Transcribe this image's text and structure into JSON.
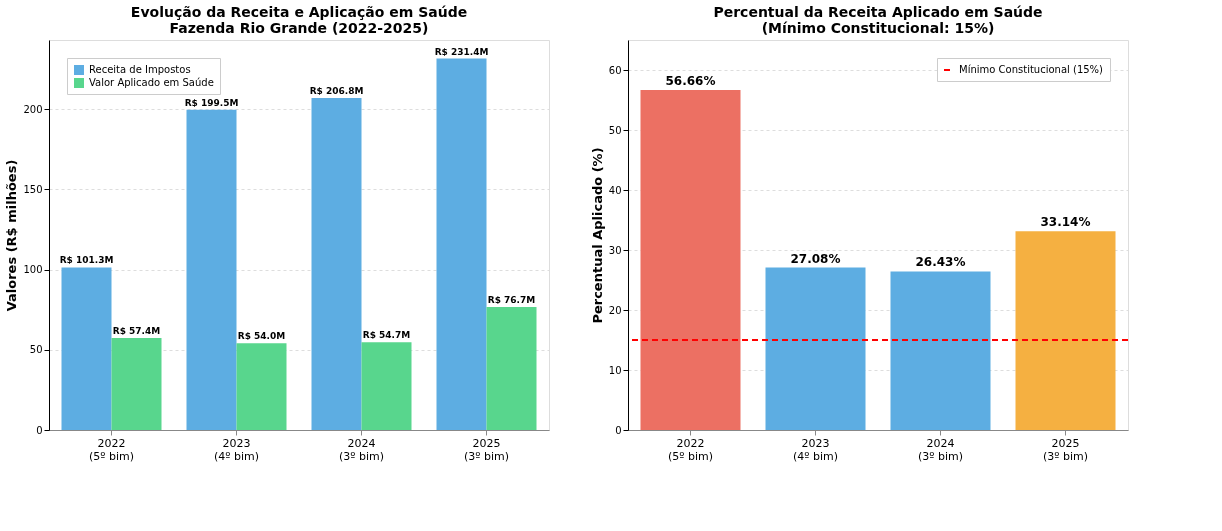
{
  "chart_data": [
    {
      "type": "bar",
      "title": "Evolução da Receita e Aplicação em Saúde\nFazenda Rio Grande (2022-2025)",
      "ylabel": "Valores (R$ milhões)",
      "categories": [
        "2022\n(5º bim)",
        "2023\n(4º bim)",
        "2024\n(3º bim)",
        "2025\n(3º bim)"
      ],
      "series": [
        {
          "name": "Receita de Impostos",
          "color": "#5dade2",
          "values": [
            101.3,
            199.5,
            206.8,
            231.4
          ],
          "value_labels": [
            "R$ 101.3M",
            "R$ 199.5M",
            "R$ 206.8M",
            "R$ 231.4M"
          ]
        },
        {
          "name": "Valor Aplicado em Saúde",
          "color": "#58d68d",
          "values": [
            57.4,
            54.0,
            54.7,
            76.7
          ],
          "value_labels": [
            "R$ 57.4M",
            "R$ 54.0M",
            "R$ 54.7M",
            "R$ 76.7M"
          ]
        }
      ],
      "ylim": [
        0,
        243
      ],
      "yticks": [
        0,
        50,
        100,
        150,
        200
      ],
      "grid": "y",
      "legend": "top left"
    },
    {
      "type": "bar",
      "title": "Percentual da Receita Aplicado em Saúde\n(Mínimo Constitucional: 15%)",
      "ylabel": "Percentual Aplicado (%)",
      "categories": [
        "2022\n(5º bim)",
        "2023\n(4º bim)",
        "2024\n(3º bim)",
        "2025\n(3º bim)"
      ],
      "values": [
        56.66,
        27.08,
        26.43,
        33.14
      ],
      "colors": [
        "#ec7063",
        "#5dade2",
        "#5dade2",
        "#f5b041"
      ],
      "value_labels": [
        "56.66%",
        "27.08%",
        "26.43%",
        "33.14%"
      ],
      "ref_lines": [
        {
          "axis": "y",
          "value": 15,
          "label": "Mínimo Constitucional (15%)",
          "color": "#ff0000",
          "line_style": "dashed"
        }
      ],
      "ylim": [
        0,
        65
      ],
      "yticks": [
        0,
        10,
        20,
        30,
        40,
        50,
        60
      ],
      "grid": "y",
      "legend": "top right"
    }
  ]
}
